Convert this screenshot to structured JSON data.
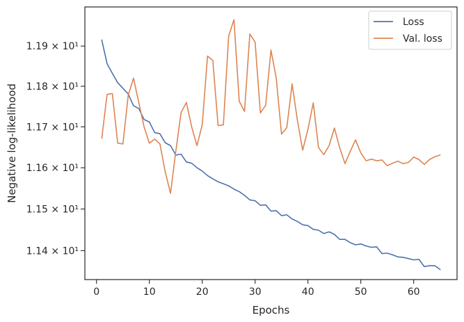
{
  "chart_data": {
    "type": "line",
    "title": "",
    "xlabel": "Epochs",
    "ylabel": "Negative log-likelihood",
    "yscale": "log",
    "xlim": [
      -2.2,
      68.2
    ],
    "ylim": [
      11.331,
      11.998
    ],
    "grid": false,
    "legend_position": "top-right",
    "x_ticks": [
      0,
      10,
      20,
      30,
      40,
      50,
      60
    ],
    "y_ticks": [
      {
        "value": 11.4,
        "label": "1.14 × 10¹"
      },
      {
        "value": 11.5,
        "label": "1.15 × 10¹"
      },
      {
        "value": 11.6,
        "label": "1.16 × 10¹"
      },
      {
        "value": 11.7,
        "label": "1.17 × 10¹"
      },
      {
        "value": 11.8,
        "label": "1.18 × 10¹"
      },
      {
        "value": 11.9,
        "label": "1.19 × 10¹"
      }
    ],
    "x": [
      1,
      2,
      3,
      4,
      5,
      6,
      7,
      8,
      9,
      10,
      11,
      12,
      13,
      14,
      15,
      16,
      17,
      18,
      19,
      20,
      21,
      22,
      23,
      24,
      25,
      26,
      27,
      28,
      29,
      30,
      31,
      32,
      33,
      34,
      35,
      36,
      37,
      38,
      39,
      40,
      41,
      42,
      43,
      44,
      45,
      46,
      47,
      48,
      49,
      50,
      51,
      52,
      53,
      54,
      55,
      56,
      57,
      58,
      59,
      60,
      61,
      62,
      63,
      64,
      65
    ],
    "series": [
      {
        "name": "Loss",
        "color": "#4c72b0",
        "values": [
          11.915,
          11.856,
          11.832,
          11.809,
          11.795,
          11.781,
          11.752,
          11.745,
          11.718,
          11.712,
          11.686,
          11.683,
          11.661,
          11.654,
          11.631,
          11.633,
          11.614,
          11.611,
          11.6,
          11.592,
          11.581,
          11.573,
          11.566,
          11.561,
          11.556,
          11.548,
          11.542,
          11.533,
          11.522,
          11.52,
          11.509,
          11.51,
          11.495,
          11.496,
          11.484,
          11.486,
          11.476,
          11.47,
          11.462,
          11.46,
          11.451,
          11.449,
          11.441,
          11.445,
          11.439,
          11.427,
          11.427,
          11.419,
          11.414,
          11.416,
          11.411,
          11.408,
          11.409,
          11.393,
          11.394,
          11.39,
          11.385,
          11.384,
          11.381,
          11.378,
          11.379,
          11.362,
          11.364,
          11.364,
          11.355
        ]
      },
      {
        "name": "Val. loss",
        "color": "#dd8452",
        "values": [
          11.672,
          11.78,
          11.782,
          11.66,
          11.658,
          11.778,
          11.82,
          11.76,
          11.7,
          11.66,
          11.67,
          11.658,
          11.59,
          11.538,
          11.64,
          11.735,
          11.76,
          11.7,
          11.654,
          11.705,
          11.875,
          11.864,
          11.703,
          11.705,
          11.925,
          11.966,
          11.763,
          11.738,
          11.93,
          11.91,
          11.734,
          11.753,
          11.89,
          11.82,
          11.682,
          11.698,
          11.806,
          11.716,
          11.643,
          11.694,
          11.759,
          11.649,
          11.632,
          11.654,
          11.697,
          11.649,
          11.61,
          11.64,
          11.668,
          11.636,
          11.617,
          11.621,
          11.617,
          11.619,
          11.605,
          11.611,
          11.616,
          11.61,
          11.613,
          11.626,
          11.62,
          11.608,
          11.62,
          11.627,
          11.631
        ]
      }
    ]
  }
}
